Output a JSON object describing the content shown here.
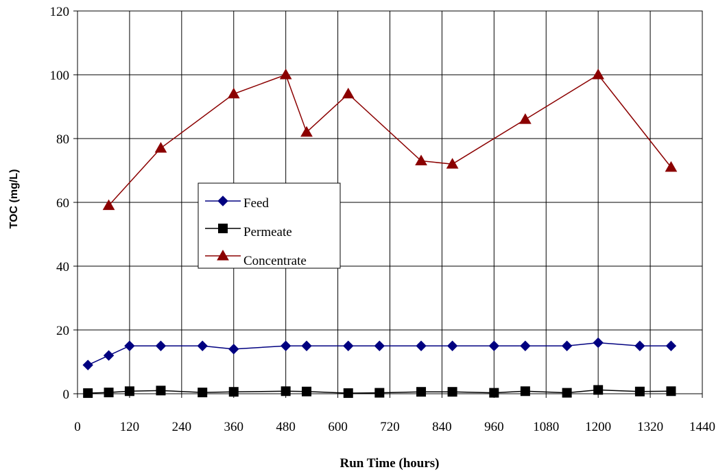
{
  "chart_data": {
    "type": "line",
    "title": "",
    "xlabel": "Run Time (hours)",
    "ylabel": "TOC (mg/L)",
    "xlim": [
      0,
      1440
    ],
    "ylim": [
      0,
      120
    ],
    "xticks": [
      0,
      120,
      240,
      360,
      480,
      600,
      720,
      840,
      960,
      1080,
      1200,
      1320,
      1440
    ],
    "yticks": [
      0,
      20,
      40,
      60,
      80,
      100,
      120
    ],
    "grid": true,
    "legend_position": "center-left",
    "series": [
      {
        "name": "Feed",
        "color": "#000080",
        "marker": "diamond",
        "x": [
          24,
          72,
          120,
          192,
          288,
          360,
          480,
          528,
          624,
          696,
          792,
          864,
          960,
          1032,
          1128,
          1200,
          1296,
          1368
        ],
        "y": [
          9,
          12,
          15,
          15,
          15,
          14,
          15,
          15,
          15,
          15,
          15,
          15,
          15,
          15,
          15,
          16,
          15,
          15
        ]
      },
      {
        "name": "Permeate",
        "color": "#000000",
        "marker": "square",
        "x": [
          24,
          72,
          120,
          192,
          288,
          360,
          480,
          528,
          624,
          696,
          792,
          864,
          960,
          1032,
          1128,
          1200,
          1296,
          1368
        ],
        "y": [
          0.2,
          0.4,
          0.8,
          1,
          0.4,
          0.6,
          0.8,
          0.7,
          0.2,
          0.3,
          0.6,
          0.6,
          0.3,
          0.8,
          0.3,
          1.2,
          0.7,
          0.8
        ]
      },
      {
        "name": "Concentrate",
        "color": "#8B0000",
        "marker": "triangle",
        "x": [
          72,
          192,
          360,
          480,
          528,
          624,
          792,
          864,
          1032,
          1200,
          1368
        ],
        "y": [
          59,
          77,
          94,
          100,
          82,
          94,
          73,
          72,
          86,
          100,
          71
        ]
      }
    ]
  }
}
